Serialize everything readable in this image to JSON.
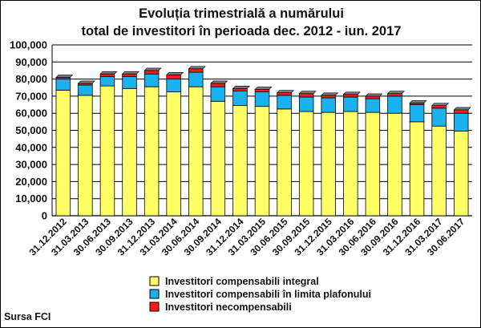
{
  "chart_data": {
    "type": "bar",
    "stacked": true,
    "title": [
      "Evoluția trimestrială a numărului",
      "total de investitori în perioada dec. 2012 - iun. 2017"
    ],
    "ylim": [
      0,
      100000
    ],
    "yticks": [
      "0",
      "10,000",
      "20,000",
      "30,000",
      "40,000",
      "50,000",
      "60,000",
      "70,000",
      "80,000",
      "90,000",
      "100,000"
    ],
    "grid": true,
    "legend_position": "bottom",
    "categories": [
      "31.12.2012",
      "31.03.2013",
      "30.06.2013",
      "30.09.2013",
      "31.12.2013",
      "31.03.2014",
      "30.06.2014",
      "30.09.2014",
      "31.12.2014",
      "31.03.2015",
      "30.06.2015",
      "30.09.2015",
      "31.12.2015",
      "31.03.2016",
      "30.06.2016",
      "30.09.2016",
      "31.12.2016",
      "31.03.2017",
      "30.06.2017"
    ],
    "series": [
      {
        "name": "Investitori compensabili integral",
        "color": "#ffff66",
        "values": [
          73500,
          70500,
          76000,
          74500,
          75500,
          72500,
          75500,
          67000,
          64500,
          64000,
          62500,
          61000,
          60500,
          61000,
          60500,
          60000,
          55000,
          52500,
          49500
        ]
      },
      {
        "name": "Investitori compensabili în limita plafonului",
        "color": "#1ab2ee",
        "values": [
          6500,
          6000,
          5500,
          7000,
          7500,
          7500,
          8500,
          8500,
          8500,
          8500,
          8000,
          8500,
          8500,
          8500,
          8000,
          10000,
          10000,
          10500,
          10500
        ]
      },
      {
        "name": "Investitori necompensabili",
        "color": "#ff1a1a",
        "values": [
          1000,
          1000,
          1500,
          1500,
          2000,
          2500,
          2000,
          2000,
          1500,
          1500,
          1500,
          2000,
          1500,
          1500,
          1500,
          1500,
          1000,
          1500,
          2000
        ]
      }
    ]
  },
  "source": "Sursa FCI"
}
